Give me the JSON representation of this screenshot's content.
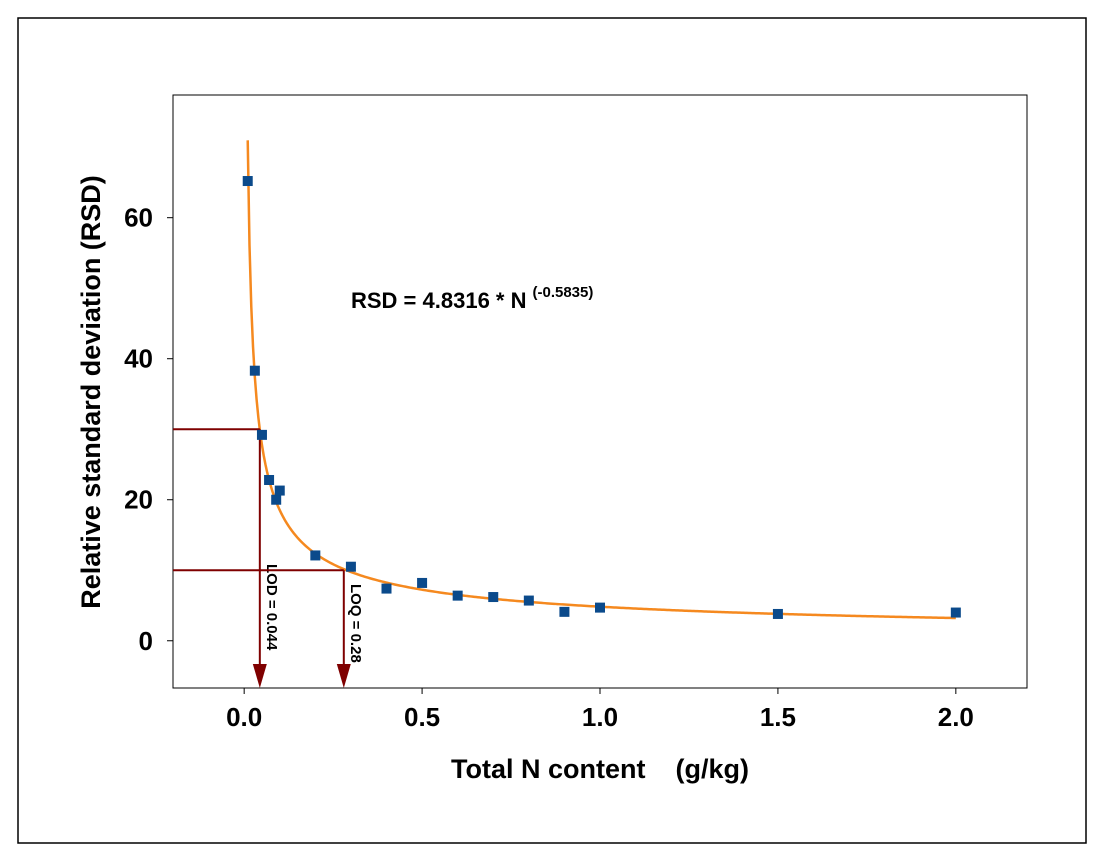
{
  "chart_data": {
    "type": "scatter",
    "x_label": "Total N content    (g/kg)",
    "y_label": "Relative standard deviation (RSD)",
    "series": [
      {
        "name": "RSD",
        "color": "#0b4a8b",
        "x": [
          0.01,
          0.03,
          0.05,
          0.07,
          0.09,
          0.1,
          0.2,
          0.3,
          0.4,
          0.5,
          0.6,
          0.7,
          0.8,
          0.9,
          1.0,
          1.5,
          2.0
        ],
        "values": [
          65.2,
          38.3,
          29.2,
          22.8,
          20.0,
          21.3,
          12.1,
          10.5,
          7.4,
          8.2,
          6.4,
          6.2,
          5.7,
          4.1,
          4.7,
          3.8,
          4.0
        ]
      }
    ],
    "fit": {
      "color": "#f5891f",
      "coefficient": 4.8316,
      "exponent": -0.5835,
      "x_start": 0.01,
      "x_end": 2.0,
      "label": "RSD = 4.8316 * N",
      "label_exponent": "(-0.5835)"
    },
    "lod": {
      "label": "LOD = 0.044",
      "x": 0.044,
      "y": 30
    },
    "loq": {
      "label": "LOQ = 0.28",
      "x": 0.28,
      "y": 10
    },
    "marker_color": "#7f0000",
    "xlim": [
      -0.2,
      2.2
    ],
    "xticks": [
      {
        "value": 0,
        "label": "0.0"
      },
      0.5,
      {
        "value": 1,
        "label": "1.0"
      },
      1.5,
      {
        "value": 2,
        "label": "2.0"
      }
    ],
    "ylim": [
      -6.7,
      77.4
    ],
    "yticks": [
      0,
      20,
      40,
      60
    ]
  }
}
